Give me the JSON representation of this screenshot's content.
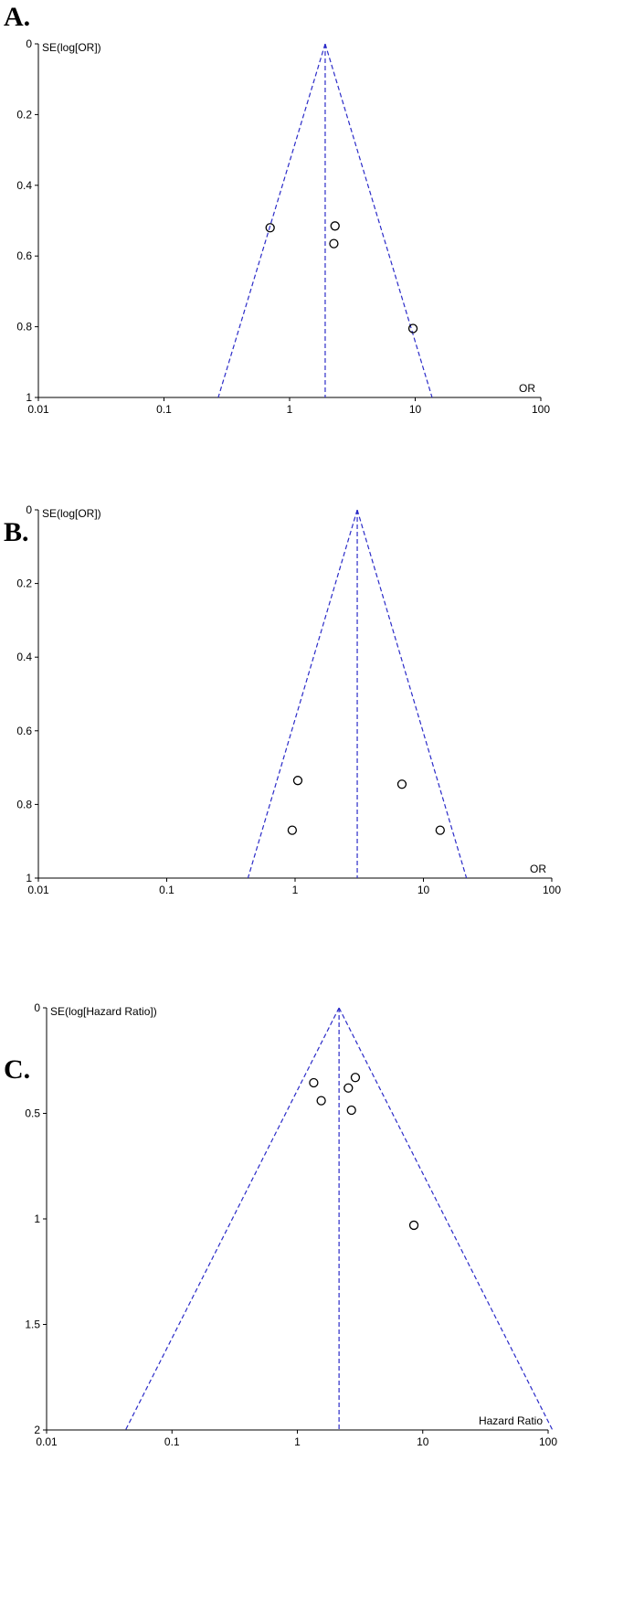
{
  "panels": [
    {
      "letter": "A."
    },
    {
      "letter": "B."
    },
    {
      "letter": "C."
    }
  ],
  "colors": {
    "funnel": "#2b2bc8",
    "axis": "#000000",
    "point": "#000000"
  },
  "chart_data": [
    {
      "type": "scatter",
      "title": "",
      "xlabel": "OR",
      "ylabel": "SE(log[OR])",
      "x_scale": "log",
      "xlim": [
        0.01,
        100
      ],
      "ylim": [
        0,
        1
      ],
      "y_inverted": true,
      "x_ticks": [
        "0.01",
        "0.1",
        "1",
        "10",
        "100"
      ],
      "y_ticks": [
        "0",
        "0.2",
        "0.4",
        "0.6",
        "0.8",
        "1"
      ],
      "pooled_estimate": 1.92,
      "points": [
        {
          "x": 0.7,
          "y": 0.52
        },
        {
          "x": 2.3,
          "y": 0.515
        },
        {
          "x": 2.25,
          "y": 0.565
        },
        {
          "x": 9.6,
          "y": 0.805
        }
      ]
    },
    {
      "type": "scatter",
      "title": "",
      "xlabel": "OR",
      "ylabel": "SE(log[OR])",
      "x_scale": "log",
      "xlim": [
        0.01,
        100
      ],
      "ylim": [
        0,
        1
      ],
      "y_inverted": true,
      "x_ticks": [
        "0.01",
        "0.1",
        "1",
        "10",
        "100"
      ],
      "y_ticks": [
        "0",
        "0.2",
        "0.4",
        "0.6",
        "0.8",
        "1"
      ],
      "pooled_estimate": 3.05,
      "points": [
        {
          "x": 1.05,
          "y": 0.735
        },
        {
          "x": 6.8,
          "y": 0.745
        },
        {
          "x": 0.95,
          "y": 0.87
        },
        {
          "x": 13.5,
          "y": 0.87
        }
      ]
    },
    {
      "type": "scatter",
      "title": "",
      "xlabel": "Hazard Ratio",
      "ylabel": "SE(log[Hazard Ratio])",
      "x_scale": "log",
      "xlim": [
        0.01,
        100
      ],
      "ylim": [
        0,
        2
      ],
      "y_inverted": true,
      "x_ticks": [
        "0.01",
        "0.1",
        "1",
        "10",
        "100"
      ],
      "y_ticks": [
        "0",
        "0.5",
        "1",
        "1.5",
        "2"
      ],
      "pooled_estimate": 2.15,
      "points": [
        {
          "x": 1.35,
          "y": 0.355
        },
        {
          "x": 2.9,
          "y": 0.33
        },
        {
          "x": 2.55,
          "y": 0.38
        },
        {
          "x": 1.55,
          "y": 0.44
        },
        {
          "x": 2.7,
          "y": 0.485
        },
        {
          "x": 8.5,
          "y": 1.03
        }
      ]
    }
  ]
}
